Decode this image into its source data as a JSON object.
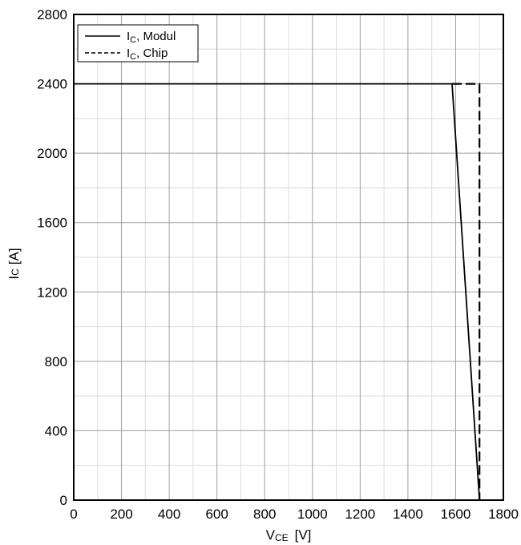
{
  "chart_data": {
    "type": "line",
    "title": "",
    "xlabel": {
      "main": "V",
      "sub": "CE",
      "unit": "[V]"
    },
    "ylabel": {
      "main": "I",
      "sub": "C",
      "unit": "[A]"
    },
    "xlim": [
      0,
      1800
    ],
    "ylim": [
      0,
      2800
    ],
    "x_ticks": [
      0,
      200,
      400,
      600,
      800,
      1000,
      1200,
      1400,
      1600,
      1800
    ],
    "y_ticks": [
      0,
      400,
      800,
      1200,
      1600,
      2000,
      2400,
      2800
    ],
    "x_minor_step": 100,
    "y_minor_step": 200,
    "grid": true,
    "legend_position": "top-left",
    "series": [
      {
        "name": {
          "main": "I",
          "sub": "C",
          "rest": ", Modul"
        },
        "style": "solid",
        "color": "#000000",
        "points": [
          [
            0,
            2400
          ],
          [
            1585,
            2400
          ],
          [
            1700,
            0
          ]
        ]
      },
      {
        "name": {
          "main": "I",
          "sub": "C",
          "rest": ", Chip"
        },
        "style": "dashed",
        "color": "#000000",
        "points": [
          [
            1585,
            2400
          ],
          [
            1700,
            2400
          ],
          [
            1700,
            0
          ]
        ]
      }
    ]
  }
}
